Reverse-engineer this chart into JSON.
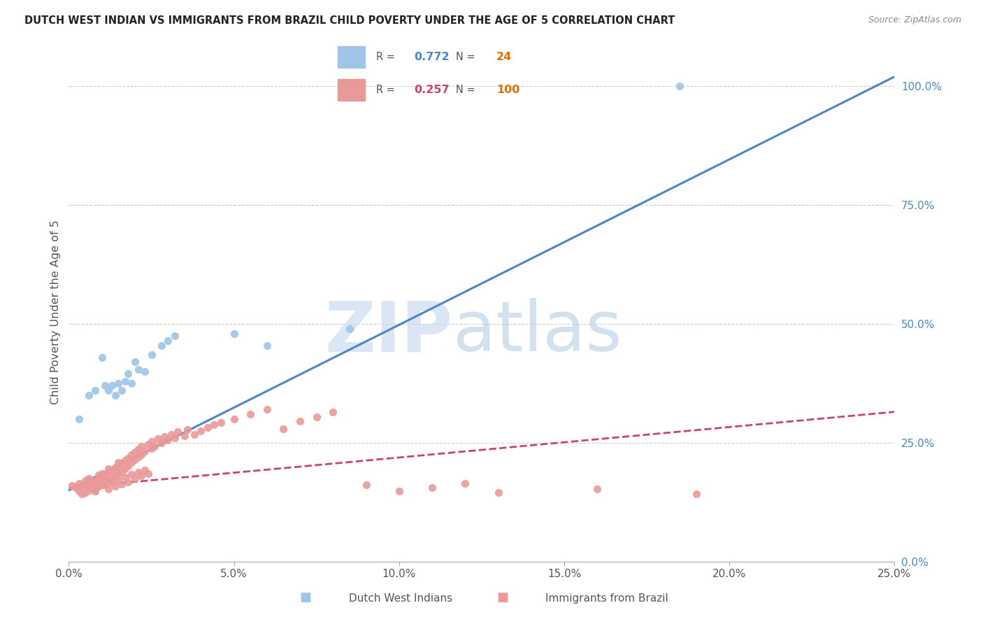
{
  "title": "DUTCH WEST INDIAN VS IMMIGRANTS FROM BRAZIL CHILD POVERTY UNDER THE AGE OF 5 CORRELATION CHART",
  "source": "Source: ZipAtlas.com",
  "ylabel": "Child Poverty Under the Age of 5",
  "xlim": [
    0.0,
    0.25
  ],
  "ylim": [
    0.0,
    1.05
  ],
  "r_blue": "0.772",
  "n_blue": "24",
  "r_pink": "0.257",
  "n_pink": "100",
  "blue_color": "#9fc5e8",
  "pink_color": "#ea9999",
  "line_blue": "#4a86c8",
  "line_pink": "#cc4466",
  "ytick_color": "#4a86c8",
  "blue_line_x": [
    0.0,
    0.25
  ],
  "blue_line_y": [
    0.15,
    1.02
  ],
  "pink_line_x": [
    0.0,
    0.25
  ],
  "pink_line_y": [
    0.155,
    0.315
  ],
  "blue_scatter_x": [
    0.003,
    0.006,
    0.008,
    0.01,
    0.011,
    0.012,
    0.013,
    0.014,
    0.015,
    0.016,
    0.017,
    0.018,
    0.019,
    0.02,
    0.021,
    0.023,
    0.025,
    0.028,
    0.03,
    0.032,
    0.05,
    0.06,
    0.085,
    0.185
  ],
  "blue_scatter_y": [
    0.3,
    0.35,
    0.36,
    0.43,
    0.37,
    0.36,
    0.37,
    0.35,
    0.375,
    0.36,
    0.38,
    0.395,
    0.375,
    0.42,
    0.405,
    0.4,
    0.435,
    0.455,
    0.465,
    0.475,
    0.48,
    0.455,
    0.49,
    1.0
  ],
  "pink_scatter_x": [
    0.001,
    0.002,
    0.003,
    0.003,
    0.004,
    0.004,
    0.005,
    0.005,
    0.006,
    0.006,
    0.006,
    0.007,
    0.007,
    0.008,
    0.008,
    0.009,
    0.009,
    0.009,
    0.01,
    0.01,
    0.01,
    0.011,
    0.011,
    0.012,
    0.012,
    0.012,
    0.013,
    0.013,
    0.014,
    0.014,
    0.015,
    0.015,
    0.015,
    0.016,
    0.016,
    0.017,
    0.017,
    0.018,
    0.018,
    0.019,
    0.019,
    0.02,
    0.02,
    0.021,
    0.021,
    0.022,
    0.022,
    0.023,
    0.024,
    0.025,
    0.025,
    0.026,
    0.027,
    0.028,
    0.029,
    0.03,
    0.031,
    0.032,
    0.033,
    0.035,
    0.036,
    0.038,
    0.04,
    0.042,
    0.044,
    0.046,
    0.05,
    0.055,
    0.06,
    0.065,
    0.07,
    0.075,
    0.08,
    0.09,
    0.1,
    0.11,
    0.12,
    0.13,
    0.16,
    0.19,
    0.005,
    0.006,
    0.007,
    0.008,
    0.009,
    0.01,
    0.011,
    0.012,
    0.013,
    0.014,
    0.015,
    0.016,
    0.017,
    0.018,
    0.019,
    0.02,
    0.021,
    0.022,
    0.023,
    0.024
  ],
  "pink_scatter_y": [
    0.16,
    0.155,
    0.148,
    0.165,
    0.142,
    0.158,
    0.145,
    0.162,
    0.15,
    0.167,
    0.175,
    0.155,
    0.172,
    0.148,
    0.168,
    0.158,
    0.175,
    0.182,
    0.162,
    0.178,
    0.185,
    0.168,
    0.183,
    0.172,
    0.188,
    0.195,
    0.175,
    0.192,
    0.18,
    0.198,
    0.183,
    0.2,
    0.208,
    0.19,
    0.207,
    0.195,
    0.213,
    0.202,
    0.218,
    0.208,
    0.225,
    0.215,
    0.23,
    0.22,
    0.237,
    0.225,
    0.242,
    0.232,
    0.247,
    0.238,
    0.253,
    0.243,
    0.258,
    0.25,
    0.263,
    0.255,
    0.268,
    0.26,
    0.273,
    0.265,
    0.278,
    0.268,
    0.275,
    0.282,
    0.288,
    0.293,
    0.3,
    0.31,
    0.32,
    0.28,
    0.295,
    0.305,
    0.315,
    0.162,
    0.148,
    0.155,
    0.165,
    0.145,
    0.152,
    0.142,
    0.17,
    0.158,
    0.165,
    0.148,
    0.16,
    0.175,
    0.162,
    0.152,
    0.168,
    0.158,
    0.172,
    0.163,
    0.178,
    0.168,
    0.183,
    0.175,
    0.188,
    0.18,
    0.193,
    0.185
  ]
}
